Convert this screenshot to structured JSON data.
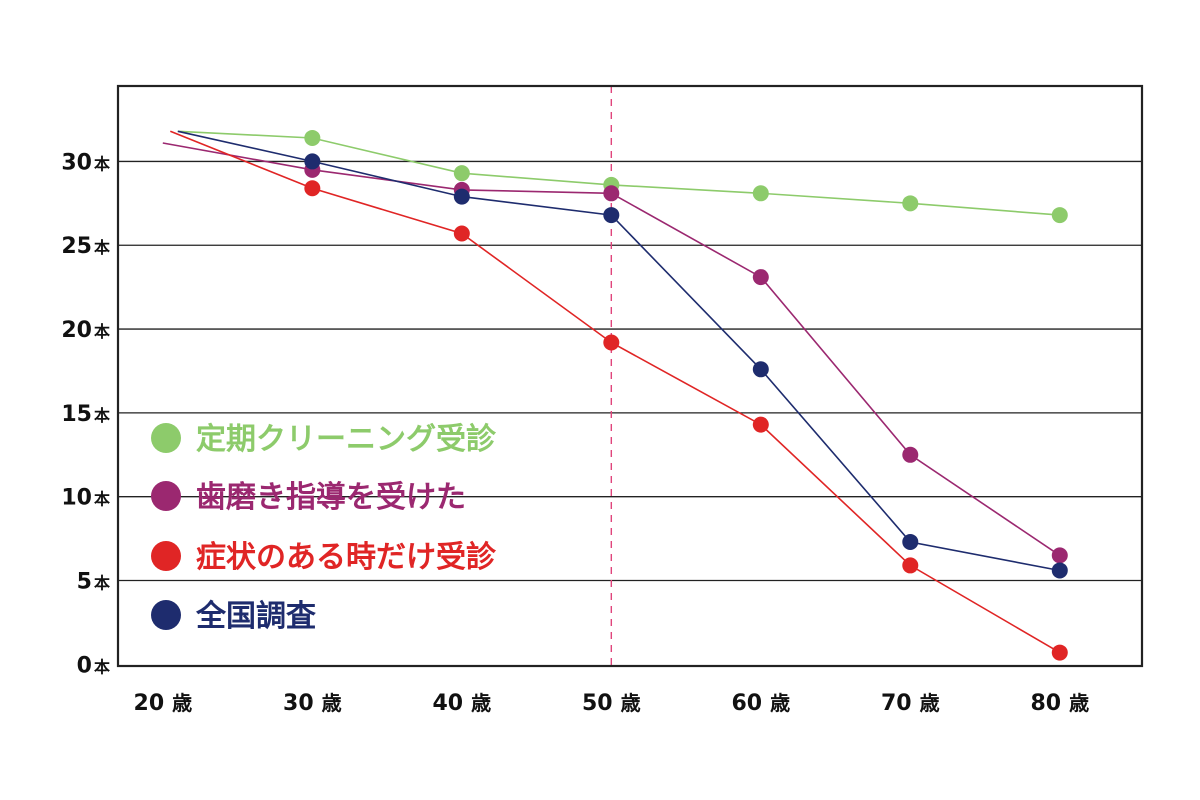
{
  "chart_data": {
    "type": "line",
    "title": "",
    "xlabel": "",
    "ylabel": "",
    "x": [
      20,
      30,
      40,
      50,
      60,
      70,
      80
    ],
    "x_tick_labels": [
      {
        "num": "20",
        "unit": "歳"
      },
      {
        "num": "30",
        "unit": "歳"
      },
      {
        "num": "40",
        "unit": "歳"
      },
      {
        "num": "50",
        "unit": "歳"
      },
      {
        "num": "60",
        "unit": "歳"
      },
      {
        "num": "70",
        "unit": "歳"
      },
      {
        "num": "80",
        "unit": "歳"
      }
    ],
    "y_ticks": [
      0,
      5,
      10,
      15,
      20,
      25,
      30
    ],
    "y_tick_labels": [
      {
        "num": "0",
        "unit": "本"
      },
      {
        "num": "5",
        "unit": "本"
      },
      {
        "num": "10",
        "unit": "本"
      },
      {
        "num": "15",
        "unit": "本"
      },
      {
        "num": "20",
        "unit": "本"
      },
      {
        "num": "25",
        "unit": "本"
      },
      {
        "num": "30",
        "unit": "本"
      }
    ],
    "xlim": [
      17,
      85.5
    ],
    "ylim": [
      -0.1,
      34.5
    ],
    "grid": true,
    "reference_line_x": 50,
    "legend_position": "left-middle",
    "series": [
      {
        "name": "定期クリーニング受診",
        "color": "#8dcb6b",
        "start": [
          21,
          31.8
        ],
        "x": [
          30,
          40,
          50,
          60,
          70,
          80
        ],
        "values": [
          31.4,
          29.3,
          28.6,
          28.1,
          27.5,
          26.8
        ]
      },
      {
        "name": "歯磨き指導を受けた",
        "color": "#9b2870",
        "start": [
          20,
          31.1
        ],
        "x": [
          30,
          40,
          50,
          60,
          70,
          80
        ],
        "values": [
          29.5,
          28.3,
          28.1,
          23.1,
          12.5,
          6.5
        ]
      },
      {
        "name": "症状のある時だけ受診",
        "color": "#e02525",
        "start": [
          20.5,
          31.8
        ],
        "x": [
          30,
          40,
          50,
          60,
          70,
          80
        ],
        "values": [
          28.4,
          25.7,
          19.2,
          14.3,
          5.9,
          0.7
        ]
      },
      {
        "name": "全国調査",
        "color": "#1e2c6e",
        "start": [
          21,
          31.8
        ],
        "x": [
          30,
          40,
          50,
          60,
          70,
          80
        ],
        "values": [
          30.0,
          27.9,
          26.8,
          17.6,
          7.3,
          5.6
        ]
      }
    ]
  }
}
